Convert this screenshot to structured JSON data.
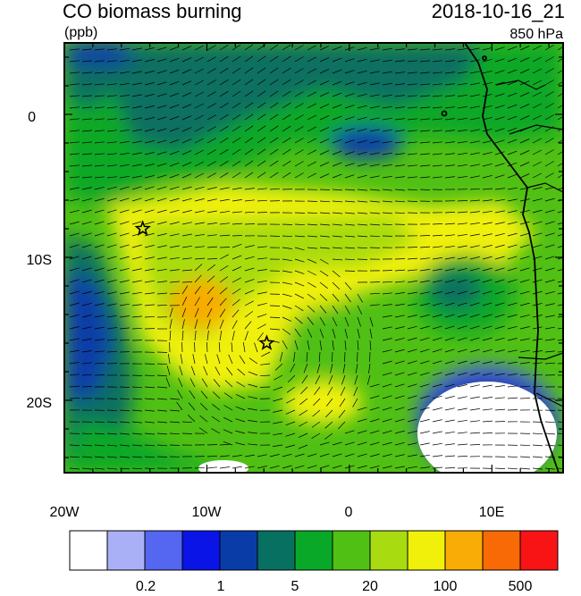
{
  "title": "CO biomass burning",
  "date": "2018-10-16_21",
  "units": "(ppb)",
  "level": "850 hPa",
  "axes": {
    "x_ticks": [
      "20W",
      "10W",
      "0",
      "10E"
    ],
    "y_ticks": [
      "0",
      "10S",
      "20S"
    ]
  },
  "markers": [
    {
      "name": "star-marker-west",
      "lon": -14.5,
      "lat": -8
    },
    {
      "name": "star-marker-south",
      "lon": -5.8,
      "lat": -16
    }
  ],
  "colorbar": {
    "colors": [
      "#ffffff",
      "#aab0f5",
      "#5566f0",
      "#0a14e6",
      "#0a3ca8",
      "#087060",
      "#0aa828",
      "#50c014",
      "#a8dc10",
      "#f0f00a",
      "#f8ac05",
      "#f86a05",
      "#f81414"
    ],
    "labels": [
      "0.2",
      "1",
      "5",
      "20",
      "100",
      "500"
    ]
  },
  "palette": {
    "field_teal": "#087060",
    "field_green": "#0aa828",
    "field_lightgreen": "#50c014",
    "field_yellowgreen": "#a8dc10",
    "field_yellow": "#f0f00a",
    "field_orange": "#f8ac05",
    "field_blue": "#0a3ca8",
    "field_lightblue": "#5566f0",
    "field_white": "#ffffff"
  }
}
